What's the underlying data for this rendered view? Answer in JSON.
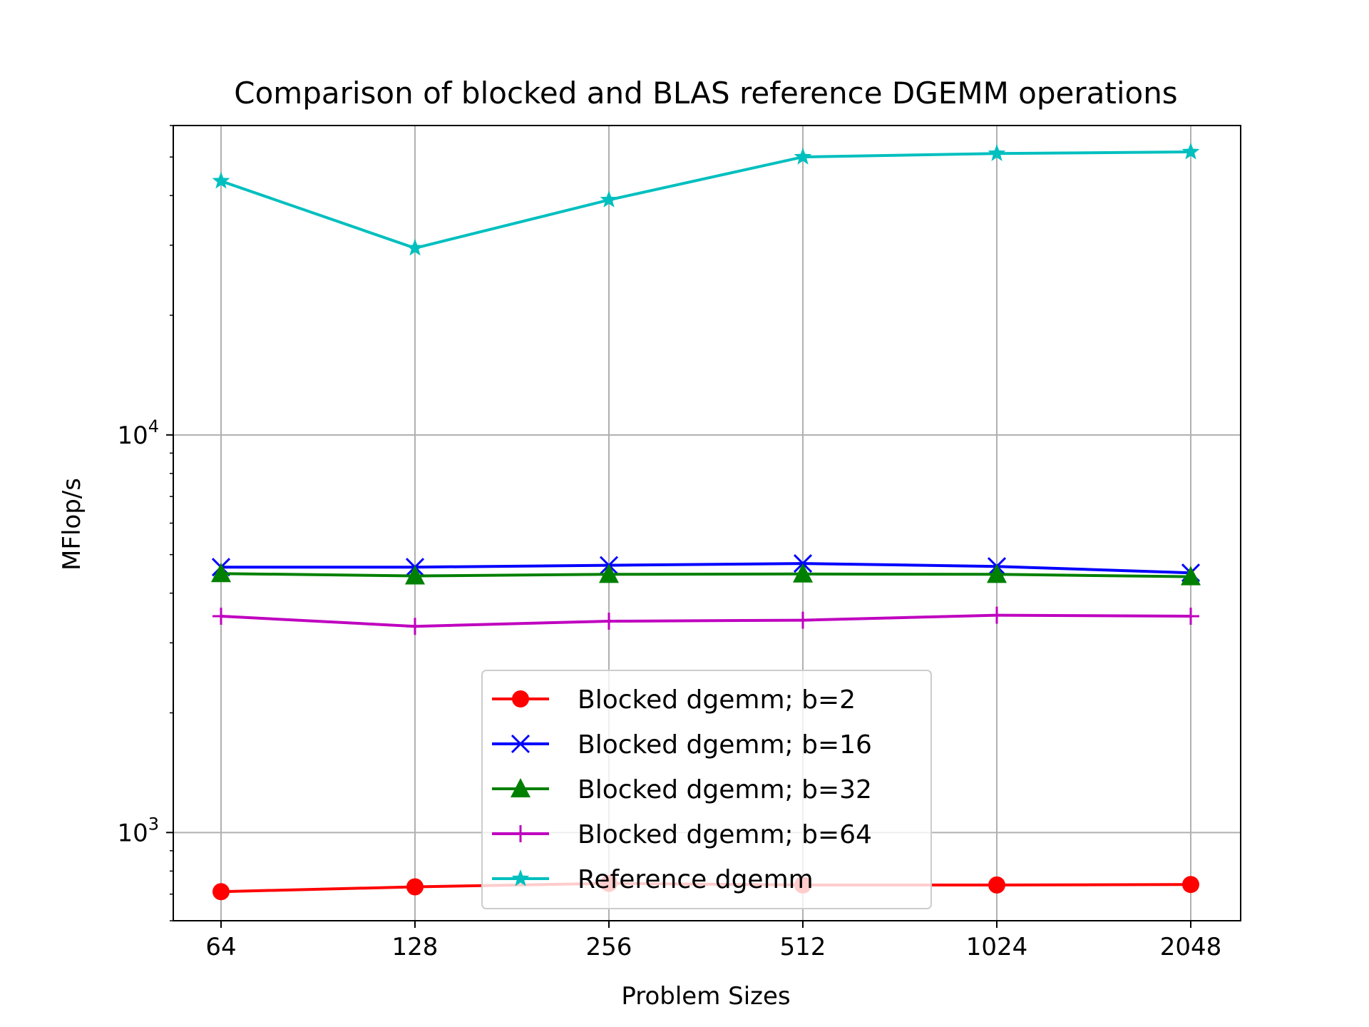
{
  "chart_data": {
    "type": "line",
    "title": "Comparison of blocked and BLAS reference DGEMM operations",
    "xlabel": "Problem Sizes",
    "ylabel": "MFlop/s",
    "x_scale": "log2",
    "y_scale": "log10",
    "grid": true,
    "legend_position": "lower-center",
    "categories": [
      "64",
      "128",
      "256",
      "512",
      "1024",
      "2048"
    ],
    "x": [
      64,
      128,
      256,
      512,
      1024,
      2048
    ],
    "ylim": [
      600,
      60000
    ],
    "yticks": [
      {
        "value": 1000,
        "base": "10",
        "exp": "3"
      },
      {
        "value": 10000,
        "base": "10",
        "exp": "4"
      }
    ],
    "series": [
      {
        "name": "Blocked dgemm; b=2",
        "color": "#ff0000",
        "marker": "circle",
        "values": [
          710,
          730,
          745,
          738,
          738,
          740
        ]
      },
      {
        "name": "Blocked dgemm; b=16",
        "color": "#0000ff",
        "marker": "x",
        "values": [
          4650,
          4650,
          4700,
          4750,
          4670,
          4500
        ]
      },
      {
        "name": "Blocked dgemm; b=32",
        "color": "#008000",
        "marker": "triangle",
        "values": [
          4480,
          4420,
          4460,
          4470,
          4460,
          4400
        ]
      },
      {
        "name": "Blocked dgemm; b=64",
        "color": "#bf00bf",
        "marker": "plus",
        "values": [
          3500,
          3300,
          3400,
          3420,
          3520,
          3500
        ]
      },
      {
        "name": "Reference dgemm",
        "color": "#00bfbf",
        "marker": "star",
        "values": [
          43500,
          29500,
          39000,
          50000,
          51000,
          51500
        ]
      }
    ]
  }
}
